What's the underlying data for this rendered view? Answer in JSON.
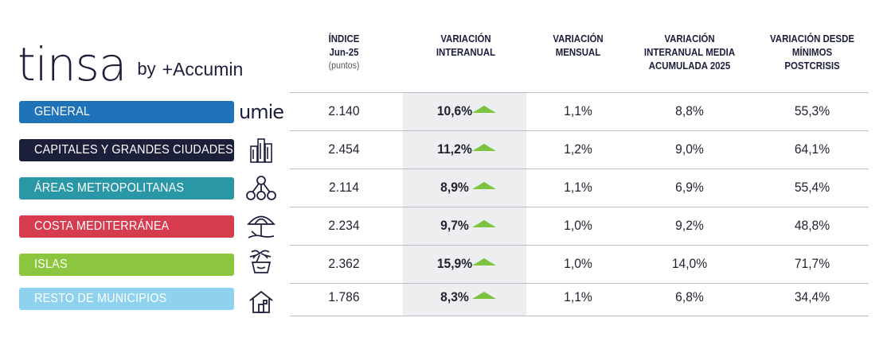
{
  "logo": {
    "main": "tinsa",
    "by": "by",
    "partner": "+Accumin"
  },
  "columns": [
    {
      "lines": [
        "ÍNDICE",
        "Jun-25"
      ],
      "sub": "(puntos)"
    },
    {
      "lines": [
        "VARIACIÓN",
        "INTERANUAL"
      ],
      "sub": ""
    },
    {
      "lines": [
        "VARIACIÓN",
        "MENSUAL"
      ],
      "sub": ""
    },
    {
      "lines": [
        "VARIACIÓN",
        "INTERANUAL MEDIA",
        "ACUMULADA 2025"
      ],
      "sub": ""
    },
    {
      "lines": [
        "VARIACIÓN DESDE",
        "MÍNIMOS",
        "POSTCRISIS"
      ],
      "sub": ""
    }
  ],
  "colors": {
    "general": "#1e73b8",
    "capitales": "#1b1f3a",
    "areas": "#2a97a6",
    "costa": "#d63c4e",
    "islas": "#8cc63f",
    "resto": "#8fd2ef",
    "arrow": "#7dc242"
  },
  "icons": [
    "umie-logo",
    "buildings-icon",
    "network-icon",
    "beach-umbrella-icon",
    "island-palm-icon",
    "house-icon"
  ],
  "umie_text": "umie",
  "chart_data": {
    "type": "table",
    "columns": [
      "ÍNDICE Jun-25 (puntos)",
      "VARIACIÓN INTERANUAL",
      "VARIACIÓN MENSUAL",
      "VARIACIÓN INTERANUAL MEDIA ACUMULADA 2025",
      "VARIACIÓN DESDE MÍNIMOS POSTCRISIS"
    ],
    "rows": [
      {
        "label": "GENERAL",
        "values": [
          "2.140",
          "10,6%",
          "1,1%",
          "8,8%",
          "55,3%"
        ]
      },
      {
        "label": "CAPITALES Y GRANDES CIUDADES",
        "values": [
          "2.454",
          "11,2%",
          "1,2%",
          "9,0%",
          "64,1%"
        ]
      },
      {
        "label": "ÁREAS METROPOLITANAS",
        "values": [
          "2.114",
          "8,9%",
          "1,1%",
          "6,9%",
          "55,4%"
        ]
      },
      {
        "label": "COSTA MEDITERRÁNEA",
        "values": [
          "2.234",
          "9,7%",
          "1,0%",
          "9,2%",
          "48,8%"
        ]
      },
      {
        "label": "ISLAS",
        "values": [
          "2.362",
          "15,9%",
          "1,0%",
          "14,0%",
          "71,7%"
        ]
      },
      {
        "label": "RESTO DE MUNICIPIOS",
        "values": [
          "1.786",
          "8,3%",
          "1,1%",
          "6,8%",
          "34,4%"
        ]
      }
    ]
  }
}
